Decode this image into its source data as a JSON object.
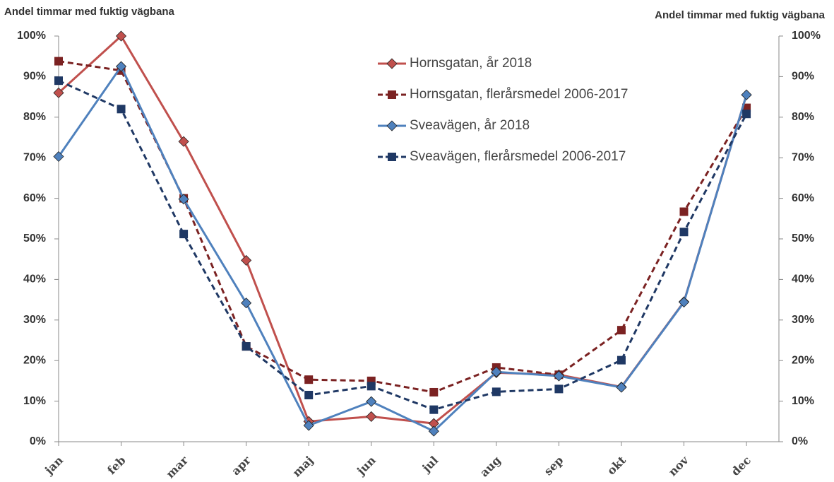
{
  "chart_data": {
    "type": "line",
    "ylabel": "Andel timmar med fuktig vägbana",
    "y2label": "Andel timmar med fuktig vägbana",
    "categories": [
      "jan",
      "feb",
      "mar",
      "apr",
      "maj",
      "jun",
      "jul",
      "aug",
      "sep",
      "okt",
      "nov",
      "dec"
    ],
    "series": [
      {
        "name": "Hornsgatan, år 2018",
        "color": "#c0504d",
        "marker": "diamond",
        "dash": false,
        "values": [
          86,
          100,
          74,
          44.7,
          5,
          6.2,
          4.5,
          17,
          16.5,
          13.5,
          34.5,
          85.5
        ]
      },
      {
        "name": "Hornsgatan, flerårsmedel 2006-2017",
        "color": "#7b2222",
        "marker": "square",
        "dash": true,
        "values": [
          93.8,
          91.5,
          60,
          23.5,
          15.3,
          15,
          12.2,
          18.3,
          16.5,
          27.5,
          56.7,
          82.3
        ]
      },
      {
        "name": "Sveavägen, år 2018",
        "color": "#4f81bd",
        "marker": "diamond",
        "dash": false,
        "values": [
          70.3,
          92.5,
          59.8,
          34.2,
          4,
          9.9,
          2.6,
          17.2,
          16.2,
          13.4,
          34.4,
          85.5
        ]
      },
      {
        "name": "Sveavägen, flerårsmedel 2006-2017",
        "color": "#1f3864",
        "marker": "square",
        "dash": true,
        "values": [
          89,
          82,
          51.2,
          23.5,
          11.5,
          13.7,
          7.9,
          12.3,
          13,
          20.1,
          51.7,
          80.8
        ]
      }
    ],
    "ylim": [
      0,
      100
    ],
    "yticks": [
      {
        "value": 0,
        "label": "0%"
      },
      {
        "value": 10,
        "label": "10%"
      },
      {
        "value": 20,
        "label": "20%"
      },
      {
        "value": 30,
        "label": "30%"
      },
      {
        "value": 40,
        "label": "40%"
      },
      {
        "value": 50,
        "label": "50%"
      },
      {
        "value": 60,
        "label": "60%"
      },
      {
        "value": 70,
        "label": "70%"
      },
      {
        "value": 80,
        "label": "80%"
      },
      {
        "value": 90,
        "label": "90%"
      },
      {
        "value": 100,
        "label": "100%"
      }
    ],
    "y2lim": [
      0,
      100
    ],
    "y2ticks": [
      {
        "value": 0,
        "label": "0%"
      },
      {
        "value": 10,
        "label": "10%"
      },
      {
        "value": 20,
        "label": "20%"
      },
      {
        "value": 30,
        "label": "30%"
      },
      {
        "value": 40,
        "label": "40%"
      },
      {
        "value": 50,
        "label": "50%"
      },
      {
        "value": 60,
        "label": "60%"
      },
      {
        "value": 70,
        "label": "70%"
      },
      {
        "value": 80,
        "label": "80%"
      },
      {
        "value": 90,
        "label": "90%"
      },
      {
        "value": 100,
        "label": "100%"
      }
    ],
    "grid": false,
    "legend": "top"
  }
}
